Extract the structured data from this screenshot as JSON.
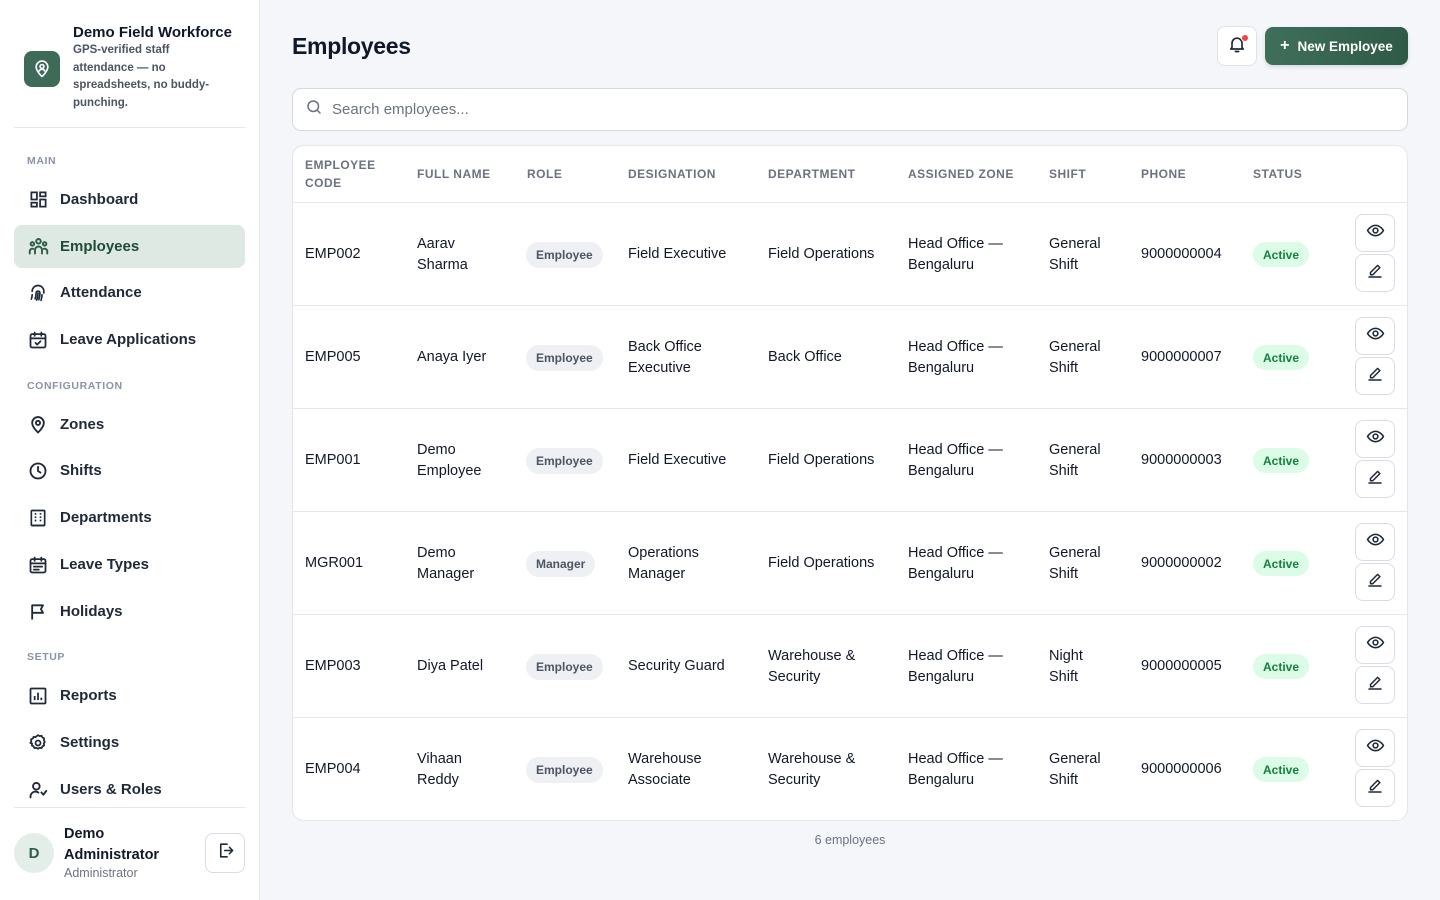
{
  "brand": {
    "title": "Demo Field Workforce",
    "subtitle": "GPS-verified staff attendance — no spreadsheets, no buddy-punching."
  },
  "nav": {
    "main_label": "MAIN",
    "config_label": "CONFIGURATION",
    "setup_label": "SETUP",
    "items": [
      {
        "label": "Dashboard",
        "icon": "dashboard-icon"
      },
      {
        "label": "Employees",
        "icon": "users-group-icon",
        "active": true
      },
      {
        "label": "Attendance",
        "icon": "fingerprint-icon"
      },
      {
        "label": "Leave Applications",
        "icon": "calendar-check-icon"
      },
      {
        "label": "Zones",
        "icon": "map-pin-icon"
      },
      {
        "label": "Shifts",
        "icon": "clock-icon"
      },
      {
        "label": "Departments",
        "icon": "building-icon"
      },
      {
        "label": "Leave Types",
        "icon": "calendar-list-icon"
      },
      {
        "label": "Holidays",
        "icon": "flag-icon"
      },
      {
        "label": "Reports",
        "icon": "bar-chart-icon"
      },
      {
        "label": "Settings",
        "icon": "gear-icon"
      },
      {
        "label": "Users & Roles",
        "icon": "user-shield-icon"
      }
    ]
  },
  "user": {
    "initial": "D",
    "name": "Demo Administrator",
    "role": "Administrator"
  },
  "header": {
    "title": "Employees",
    "new_button_label": "New Employee"
  },
  "search": {
    "placeholder": "Search employees..."
  },
  "table": {
    "columns": {
      "code": "EMPLOYEE CODE",
      "name": "FULL NAME",
      "role": "ROLE",
      "designation": "DESIGNATION",
      "department": "DEPARTMENT",
      "zone": "ASSIGNED ZONE",
      "shift": "SHIFT",
      "phone": "PHONE",
      "status": "STATUS"
    },
    "rows": [
      {
        "code": "EMP002",
        "name": "Aarav Sharma",
        "role": "Employee",
        "designation": "Field Executive",
        "department": "Field Operations",
        "zone": "Head Office — Bengaluru",
        "shift": "General Shift",
        "phone": "9000000004",
        "status": "Active"
      },
      {
        "code": "EMP005",
        "name": "Anaya Iyer",
        "role": "Employee",
        "designation": "Back Office Executive",
        "department": "Back Office",
        "zone": "Head Office — Bengaluru",
        "shift": "General Shift",
        "phone": "9000000007",
        "status": "Active"
      },
      {
        "code": "EMP001",
        "name": "Demo Employee",
        "role": "Employee",
        "designation": "Field Executive",
        "department": "Field Operations",
        "zone": "Head Office — Bengaluru",
        "shift": "General Shift",
        "phone": "9000000003",
        "status": "Active"
      },
      {
        "code": "MGR001",
        "name": "Demo Manager",
        "role": "Manager",
        "designation": "Operations Manager",
        "department": "Field Operations",
        "zone": "Head Office — Bengaluru",
        "shift": "General Shift",
        "phone": "9000000002",
        "status": "Active"
      },
      {
        "code": "EMP003",
        "name": "Diya Patel",
        "role": "Employee",
        "designation": "Security Guard",
        "department": "Warehouse & Security",
        "zone": "Head Office — Bengaluru",
        "shift": "Night Shift",
        "phone": "9000000005",
        "status": "Active"
      },
      {
        "code": "EMP004",
        "name": "Vihaan Reddy",
        "role": "Employee",
        "designation": "Warehouse Associate",
        "department": "Warehouse & Security",
        "zone": "Head Office — Bengaluru",
        "shift": "General Shift",
        "phone": "9000000006",
        "status": "Active"
      }
    ]
  },
  "footer": {
    "count": "6 employees"
  },
  "colors": {
    "brand": "#3d6b57",
    "active_nav_bg": "#dde9e2",
    "status_active_bg": "#dcfce7",
    "status_active_text": "#15803d",
    "notification_dot": "#ef4444"
  }
}
